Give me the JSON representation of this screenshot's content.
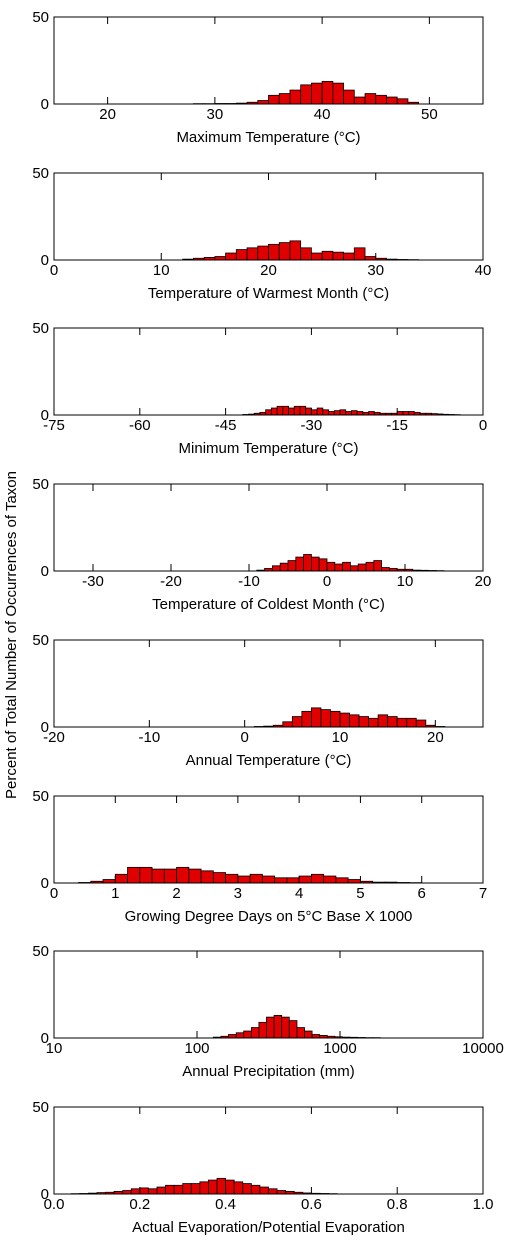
{
  "ylabel": "Percent of Total Number of Occurrences of Taxon",
  "colors": {
    "bar_fill": "#e00000",
    "bar_stroke": "#000000"
  },
  "chart_data": [
    {
      "type": "bar",
      "xlabel": "Maximum Temperature (°C)",
      "xscale": "linear",
      "xlim": [
        15,
        55
      ],
      "xticks": [
        20,
        30,
        40,
        50
      ],
      "xtick_labels": [
        "20",
        "30",
        "40",
        "50"
      ],
      "ylim": [
        0,
        50
      ],
      "yticks": [
        0,
        50
      ],
      "ytick_labels": [
        "0",
        "50"
      ],
      "bin_width": 1,
      "bin_starts": [
        28,
        29,
        30,
        31,
        32,
        33,
        34,
        35,
        36,
        37,
        38,
        39,
        40,
        41,
        42,
        43,
        44,
        45,
        46,
        47,
        48
      ],
      "values": [
        0.2,
        0.2,
        0.3,
        0.3,
        0.5,
        1,
        2,
        5,
        6,
        8,
        11,
        12,
        13,
        12,
        8,
        4,
        6,
        5,
        4,
        3,
        1
      ]
    },
    {
      "type": "bar",
      "xlabel": "Temperature of Warmest Month (°C)",
      "xscale": "linear",
      "xlim": [
        0,
        40
      ],
      "xticks": [
        0,
        10,
        20,
        30,
        40
      ],
      "xtick_labels": [
        "0",
        "10",
        "20",
        "30",
        "40"
      ],
      "ylim": [
        0,
        50
      ],
      "yticks": [
        0,
        50
      ],
      "ytick_labels": [
        "0",
        "50"
      ],
      "bin_width": 1,
      "bin_starts": [
        12,
        13,
        14,
        15,
        16,
        17,
        18,
        19,
        20,
        21,
        22,
        23,
        24,
        25,
        26,
        27,
        28,
        29,
        30,
        31,
        32,
        33
      ],
      "values": [
        0.5,
        1,
        1.5,
        2,
        4,
        6,
        7,
        8,
        9,
        10,
        11,
        7,
        4,
        5,
        4.5,
        4,
        7,
        2,
        1,
        0.5,
        0.3,
        0.2
      ]
    },
    {
      "type": "bar",
      "xlabel": "Minimum Temperature (°C)",
      "xscale": "linear",
      "xlim": [
        -75,
        0
      ],
      "xticks": [
        -75,
        -60,
        -45,
        -30,
        -15,
        0
      ],
      "xtick_labels": [
        "-75",
        "-60",
        "-45",
        "-30",
        "-15",
        "0"
      ],
      "ylim": [
        0,
        50
      ],
      "yticks": [
        0,
        50
      ],
      "ytick_labels": [
        "0",
        "50"
      ],
      "bin_width": 1,
      "bin_starts": [
        -42,
        -41,
        -40,
        -39,
        -38,
        -37,
        -36,
        -35,
        -34,
        -33,
        -32,
        -31,
        -30,
        -29,
        -28,
        -27,
        -26,
        -25,
        -24,
        -23,
        -22,
        -21,
        -20,
        -19,
        -18,
        -17,
        -16,
        -15,
        -14,
        -13,
        -12,
        -11,
        -10,
        -9,
        -8,
        -7,
        -6,
        -5
      ],
      "values": [
        0.3,
        0.5,
        1,
        1.5,
        3,
        4,
        5,
        5,
        4,
        5,
        5,
        4,
        3,
        4,
        3,
        2,
        2.5,
        3,
        2,
        2.5,
        2,
        1.5,
        2,
        1.5,
        1,
        1,
        1,
        2,
        2,
        2,
        1.5,
        1,
        1,
        0.8,
        0.6,
        0.4,
        0.3,
        0.2
      ]
    },
    {
      "type": "bar",
      "xlabel": "Temperature of Coldest Month (°C)",
      "xscale": "linear",
      "xlim": [
        -35,
        20
      ],
      "xticks": [
        -30,
        -20,
        -10,
        0,
        10,
        20
      ],
      "xtick_labels": [
        "-30",
        "-20",
        "-10",
        "0",
        "10",
        "20"
      ],
      "ylim": [
        0,
        50
      ],
      "yticks": [
        0,
        50
      ],
      "ytick_labels": [
        "0",
        "50"
      ],
      "bin_width": 1,
      "bin_starts": [
        -9,
        -8,
        -7,
        -6,
        -5,
        -4,
        -3,
        -2,
        -1,
        0,
        1,
        2,
        3,
        4,
        5,
        6,
        7,
        8,
        9,
        10,
        11,
        12,
        13,
        14
      ],
      "values": [
        0.5,
        1.5,
        3,
        4.5,
        6,
        8,
        9.5,
        8,
        7,
        5,
        4,
        5,
        3,
        4,
        5,
        6,
        2,
        1.5,
        1,
        1,
        0.5,
        0.4,
        0.3,
        0.2
      ]
    },
    {
      "type": "bar",
      "xlabel": "Annual Temperature (°C)",
      "xscale": "linear",
      "xlim": [
        -20,
        25
      ],
      "xticks": [
        -20,
        -10,
        0,
        10,
        20
      ],
      "xtick_labels": [
        "-20",
        "-10",
        "0",
        "10",
        "20"
      ],
      "ylim": [
        0,
        50
      ],
      "yticks": [
        0,
        50
      ],
      "ytick_labels": [
        "0",
        "50"
      ],
      "bin_width": 1,
      "bin_starts": [
        1,
        2,
        3,
        4,
        5,
        6,
        7,
        8,
        9,
        10,
        11,
        12,
        13,
        14,
        15,
        16,
        17,
        18,
        19,
        20
      ],
      "values": [
        0.3,
        0.5,
        1,
        3,
        6,
        9,
        11,
        10,
        9,
        8,
        7,
        6,
        5,
        7,
        6,
        5,
        5,
        4,
        1,
        0.3
      ]
    },
    {
      "type": "bar",
      "xlabel": "Growing Degree Days on 5°C Base X 1000",
      "xscale": "linear",
      "xlim": [
        0,
        7
      ],
      "xticks": [
        0,
        1,
        2,
        3,
        4,
        5,
        6,
        7
      ],
      "xtick_labels": [
        "0",
        "1",
        "2",
        "3",
        "4",
        "5",
        "6",
        "7"
      ],
      "ylim": [
        0,
        50
      ],
      "yticks": [
        0,
        50
      ],
      "ytick_labels": [
        "0",
        "50"
      ],
      "bin_width": 0.2,
      "bin_starts": [
        0.4,
        0.6,
        0.8,
        1.0,
        1.2,
        1.4,
        1.6,
        1.8,
        2.0,
        2.2,
        2.4,
        2.6,
        2.8,
        3.0,
        3.2,
        3.4,
        3.6,
        3.8,
        4.0,
        4.2,
        4.4,
        4.6,
        4.8,
        5.0,
        5.2,
        5.4,
        5.6,
        5.8
      ],
      "values": [
        0.3,
        1,
        2,
        5,
        9,
        9,
        8,
        8,
        9,
        8,
        7,
        6,
        5,
        4,
        5,
        4,
        3,
        3,
        4,
        5,
        4,
        3,
        2,
        1,
        0.5,
        0.5,
        0.3,
        0.2
      ]
    },
    {
      "type": "bar",
      "xlabel": "Annual Precipitation (mm)",
      "xscale": "log",
      "xlim": [
        10,
        10000
      ],
      "xticks": [
        10,
        100,
        1000,
        10000
      ],
      "xtick_labels": [
        "10",
        "100",
        "1000",
        "10000"
      ],
      "ylim": [
        0,
        50
      ],
      "yticks": [
        0,
        50
      ],
      "ytick_labels": [
        "0",
        "50"
      ],
      "bin_edges": [
        130,
        147,
        166,
        188,
        212,
        240,
        271,
        306,
        346,
        391,
        442,
        500,
        565,
        638,
        721,
        815,
        921,
        1041,
        1176,
        1329,
        1502,
        1697,
        1918
      ],
      "values": [
        0.5,
        1,
        2,
        3,
        4,
        6,
        9,
        12,
        13,
        12,
        10,
        6,
        4,
        2,
        1.5,
        1,
        0.7,
        0.5,
        0.4,
        0.3,
        0.2,
        0.2
      ]
    },
    {
      "type": "bar",
      "xlabel": "Actual Evaporation/Potential Evaporation",
      "xscale": "linear",
      "xlim": [
        0,
        1.0
      ],
      "xticks": [
        0.0,
        0.2,
        0.4,
        0.6,
        0.8,
        1.0
      ],
      "xtick_labels": [
        "0.0",
        "0.2",
        "0.4",
        "0.6",
        "0.8",
        "1.0"
      ],
      "ylim": [
        0,
        50
      ],
      "yticks": [
        0,
        50
      ],
      "ytick_labels": [
        "0",
        "50"
      ],
      "bin_width": 0.02,
      "bin_starts": [
        0.04,
        0.06,
        0.08,
        0.1,
        0.12,
        0.14,
        0.16,
        0.18,
        0.2,
        0.22,
        0.24,
        0.26,
        0.28,
        0.3,
        0.32,
        0.34,
        0.36,
        0.38,
        0.4,
        0.42,
        0.44,
        0.46,
        0.48,
        0.5,
        0.52,
        0.54,
        0.56,
        0.58,
        0.6,
        0.62,
        0.64
      ],
      "values": [
        0.2,
        0.3,
        0.5,
        0.8,
        1,
        1.5,
        2,
        3,
        3.5,
        3,
        4,
        5,
        5,
        6,
        6,
        7,
        8,
        9,
        8,
        7,
        6,
        5,
        4,
        3,
        2,
        1.5,
        1,
        0.6,
        0.4,
        0.3,
        0.2
      ]
    }
  ]
}
